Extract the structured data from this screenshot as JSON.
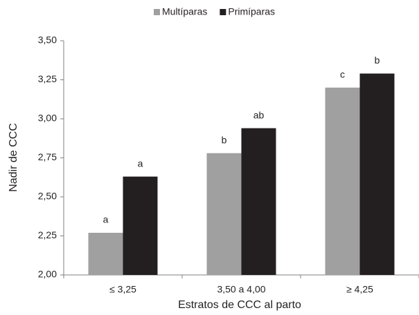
{
  "chart_data": {
    "type": "bar",
    "x_label": "Estratos de CCC al parto",
    "y_label": "Nadir de CCC",
    "categories": [
      "≤ 3,25",
      "3,50 a 4,00",
      "≥ 4,25"
    ],
    "series": [
      {
        "name": "Multíparas",
        "color": "#a0a0a0",
        "values": [
          2.27,
          2.78,
          3.2
        ],
        "letters": [
          "a",
          "b",
          "c"
        ]
      },
      {
        "name": "Primíparas",
        "color": "#231f20",
        "values": [
          2.63,
          2.94,
          3.29
        ],
        "letters": [
          "a",
          "ab",
          "b"
        ]
      }
    ],
    "ylim": [
      2.0,
      3.5
    ],
    "yticks": [
      {
        "value": 2.0,
        "label": "2,00"
      },
      {
        "value": 2.25,
        "label": "2,25"
      },
      {
        "value": 2.5,
        "label": "2,50"
      },
      {
        "value": 2.75,
        "label": "2,75"
      },
      {
        "value": 3.0,
        "label": "3,00"
      },
      {
        "value": 3.25,
        "label": "3,25"
      },
      {
        "value": 3.5,
        "label": "3,50"
      }
    ],
    "grid": false,
    "legend": "top"
  }
}
